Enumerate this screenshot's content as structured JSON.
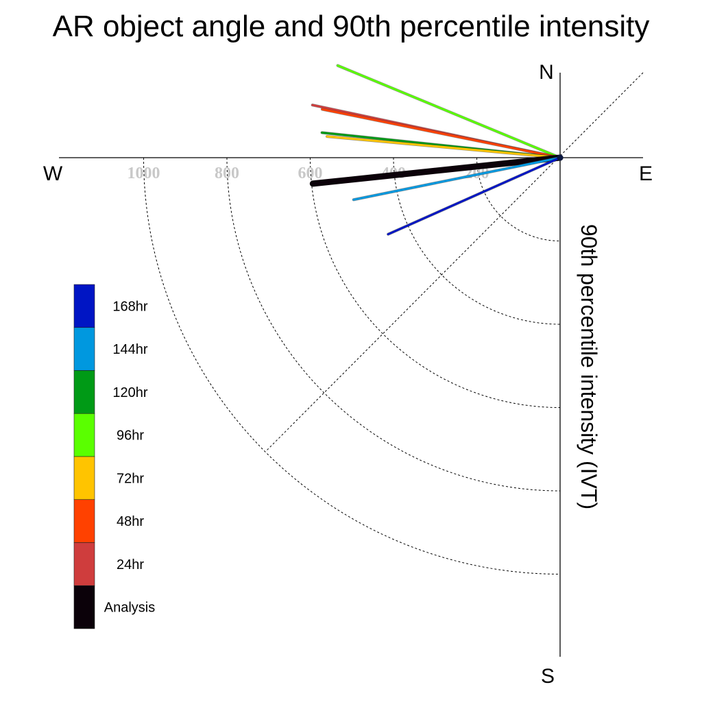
{
  "title": "AR object angle and 90th percentile intensity",
  "compass": {
    "north": "N",
    "south": "S",
    "east": "E",
    "west": "W"
  },
  "axis_title": "90th percentile intensity (IVT)",
  "colors": {
    "168hr": "#0015c4",
    "144hr": "#0098df",
    "120hr": "#009a16",
    "96hr": "#5aff00",
    "72hr": "#ffc400",
    "48hr": "#ff4100",
    "24hr": "#cf3d3d",
    "Analysis": "#0b0109"
  },
  "chart_data": {
    "type": "polar-vector",
    "title": "AR object angle and 90th percentile intensity",
    "radial_label": "90th percentile intensity (IVT)",
    "radial_ticks": [
      200,
      400,
      600,
      800,
      1000
    ],
    "radial_max": 1200,
    "grid": true,
    "legend_position": "left",
    "legend": [
      "168hr",
      "144hr",
      "120hr",
      "96hr",
      "72hr",
      "48hr",
      "24hr",
      "Analysis"
    ],
    "series": [
      {
        "name": "96hr",
        "angle_deg": 157.5,
        "intensity": 578,
        "color": "#5aff00"
      },
      {
        "name": "24hr",
        "angle_deg": 168.0,
        "intensity": 608,
        "color": "#cf3d3d"
      },
      {
        "name": "48hr",
        "angle_deg": 168.5,
        "intensity": 583,
        "color": "#ff4100"
      },
      {
        "name": "120hr",
        "angle_deg": 174.0,
        "intensity": 575,
        "color": "#009a16"
      },
      {
        "name": "72hr",
        "angle_deg": 174.8,
        "intensity": 562,
        "color": "#ffc400"
      },
      {
        "name": "Analysis",
        "angle_deg": 186.0,
        "intensity": 597,
        "color": "#0b0109"
      },
      {
        "name": "144hr",
        "angle_deg": 191.5,
        "intensity": 506,
        "color": "#0098df"
      },
      {
        "name": "168hr",
        "angle_deg": 204.0,
        "intensity": 452,
        "color": "#0015c4"
      }
    ]
  }
}
